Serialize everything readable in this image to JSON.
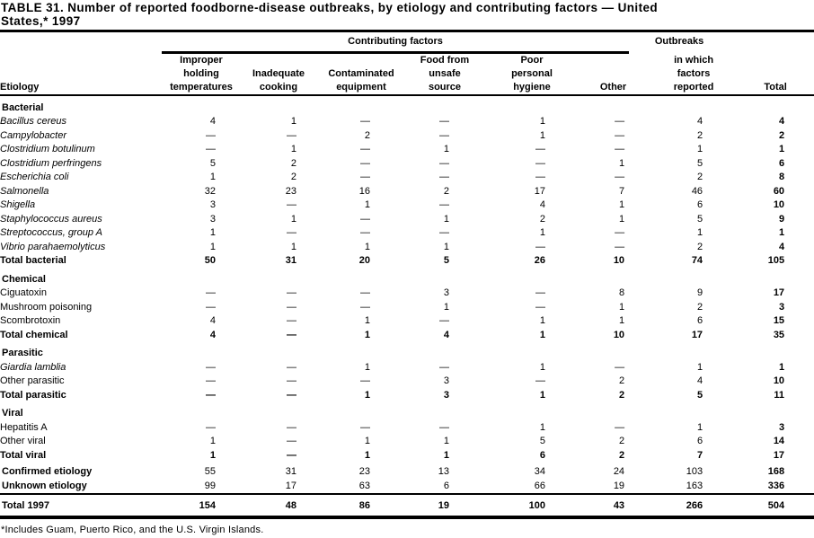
{
  "title": {
    "line1": "TABLE 31. Number of reported foodborne-disease outbreaks, by etiology and contributing factors — United",
    "line2": "States,* 1997"
  },
  "table": {
    "spanner_label": "Contributing factors",
    "outbreaks_top_label": "Outbreaks",
    "columns": [
      {
        "label": "Etiology"
      },
      {
        "label": "Improper\nholding\ntemperatures"
      },
      {
        "label": "Inadequate\ncooking"
      },
      {
        "label": "Contaminated\nequipment"
      },
      {
        "label": "Food from\nunsafe\nsource"
      },
      {
        "label": "Poor\npersonal\nhygiene"
      },
      {
        "label": "Other"
      },
      {
        "label": "in which\nfactors\nreported"
      },
      {
        "label": "Total"
      }
    ],
    "rows": [
      {
        "style": "section",
        "label": "Bacterial"
      },
      {
        "style": "item",
        "italic": true,
        "label": "Bacillus cereus",
        "values": [
          "4",
          "1",
          "—",
          "—",
          "1",
          "—",
          "4",
          "4"
        ]
      },
      {
        "style": "item",
        "italic": true,
        "label": "Campylobacter",
        "values": [
          "—",
          "—",
          "2",
          "—",
          "1",
          "—",
          "2",
          "2"
        ]
      },
      {
        "style": "item",
        "italic": true,
        "label": "Clostridium botulinum",
        "values": [
          "—",
          "1",
          "—",
          "1",
          "—",
          "—",
          "1",
          "1"
        ]
      },
      {
        "style": "item",
        "italic": true,
        "label": "Clostridium perfringens",
        "values": [
          "5",
          "2",
          "—",
          "—",
          "—",
          "1",
          "5",
          "6"
        ]
      },
      {
        "style": "item",
        "italic": true,
        "label": "Escherichia coli",
        "values": [
          "1",
          "2",
          "—",
          "—",
          "—",
          "—",
          "2",
          "8"
        ]
      },
      {
        "style": "item",
        "italic": true,
        "label": "Salmonella",
        "values": [
          "32",
          "23",
          "16",
          "2",
          "17",
          "7",
          "46",
          "60"
        ]
      },
      {
        "style": "item",
        "italic": true,
        "label": "Shigella",
        "values": [
          "3",
          "—",
          "1",
          "—",
          "4",
          "1",
          "6",
          "10"
        ]
      },
      {
        "style": "item",
        "italic": true,
        "label": "Staphylococcus aureus",
        "values": [
          "3",
          "1",
          "—",
          "1",
          "2",
          "1",
          "5",
          "9"
        ]
      },
      {
        "style": "item",
        "italic": true,
        "label": "Streptococcus, group A",
        "values": [
          "1",
          "—",
          "—",
          "—",
          "1",
          "—",
          "1",
          "1"
        ]
      },
      {
        "style": "item",
        "italic": true,
        "label": "Vibrio parahaemolyticus",
        "values": [
          "1",
          "1",
          "1",
          "1",
          "—",
          "—",
          "2",
          "4"
        ]
      },
      {
        "style": "total",
        "label": "Total bacterial",
        "values": [
          "50",
          "31",
          "20",
          "5",
          "26",
          "10",
          "74",
          "105"
        ]
      },
      {
        "style": "section",
        "label": "Chemical"
      },
      {
        "style": "item",
        "italic": false,
        "label": "Ciguatoxin",
        "values": [
          "—",
          "—",
          "—",
          "3",
          "—",
          "8",
          "9",
          "17"
        ]
      },
      {
        "style": "item",
        "italic": false,
        "label": "Mushroom poisoning",
        "values": [
          "—",
          "—",
          "—",
          "1",
          "—",
          "1",
          "2",
          "3"
        ]
      },
      {
        "style": "item",
        "italic": false,
        "label": "Scombrotoxin",
        "values": [
          "4",
          "—",
          "1",
          "—",
          "1",
          "1",
          "6",
          "15"
        ]
      },
      {
        "style": "total",
        "label": "Total chemical",
        "values": [
          "4",
          "—",
          "1",
          "4",
          "1",
          "10",
          "17",
          "35"
        ]
      },
      {
        "style": "section",
        "label": "Parasitic"
      },
      {
        "style": "item",
        "italic": true,
        "label": "Giardia lamblia",
        "values": [
          "—",
          "—",
          "1",
          "—",
          "1",
          "—",
          "1",
          "1"
        ]
      },
      {
        "style": "item",
        "italic": false,
        "label": "Other parasitic",
        "values": [
          "—",
          "—",
          "—",
          "3",
          "—",
          "2",
          "4",
          "10"
        ]
      },
      {
        "style": "total",
        "label": "Total parasitic",
        "values": [
          "—",
          "—",
          "1",
          "3",
          "1",
          "2",
          "5",
          "11"
        ]
      },
      {
        "style": "section",
        "label": "Viral"
      },
      {
        "style": "item",
        "italic": false,
        "label": "Hepatitis A",
        "values": [
          "—",
          "—",
          "—",
          "—",
          "1",
          "—",
          "1",
          "3"
        ]
      },
      {
        "style": "item",
        "italic": false,
        "label": "Other viral",
        "values": [
          "1",
          "—",
          "1",
          "1",
          "5",
          "2",
          "6",
          "14"
        ]
      },
      {
        "style": "total",
        "label": "Total viral",
        "values": [
          "1",
          "—",
          "1",
          "1",
          "6",
          "2",
          "7",
          "17"
        ]
      },
      {
        "style": "summary",
        "first": true,
        "label": "Confirmed etiology",
        "values": [
          "55",
          "31",
          "23",
          "13",
          "34",
          "24",
          "103",
          "168"
        ]
      },
      {
        "style": "summary",
        "label": "Unknown etiology",
        "values": [
          "99",
          "17",
          "63",
          "6",
          "66",
          "19",
          "163",
          "336"
        ]
      },
      {
        "style": "grand",
        "label": "Total 1997",
        "values": [
          "154",
          "48",
          "86",
          "19",
          "100",
          "43",
          "266",
          "504"
        ]
      }
    ]
  },
  "footnote": "*Includes Guam, Puerto Rico, and the U.S. Virgin Islands."
}
